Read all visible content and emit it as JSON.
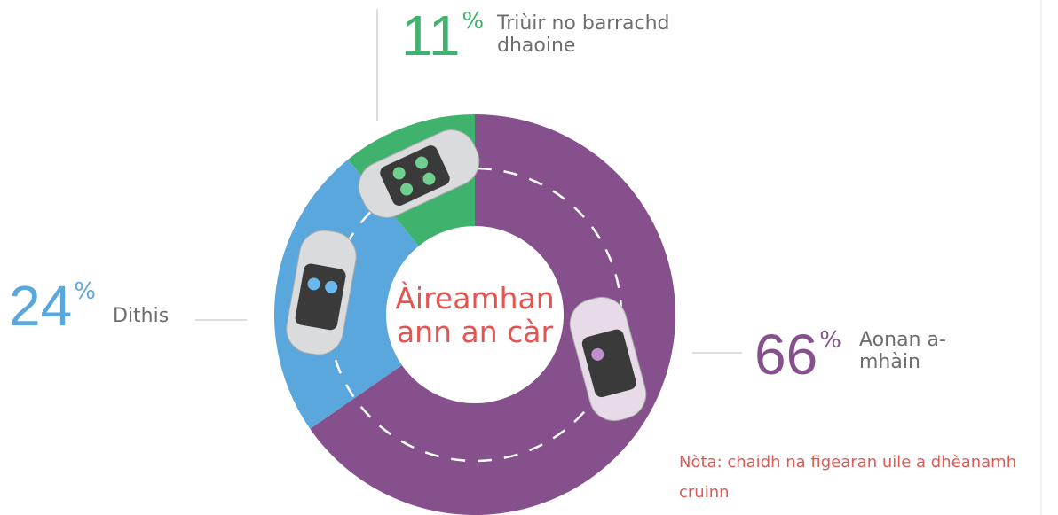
{
  "chart_data": {
    "type": "pie",
    "title": "Àireamhan ann an càr",
    "categories": [
      "Aonan a-mhàin",
      "Dithis",
      "Triùir no barrachd dhaoine"
    ],
    "values": [
      66,
      24,
      11
    ],
    "value_unit": "%",
    "colors": [
      "#86508c",
      "#5aa7dd",
      "#3fb36e"
    ],
    "note": "Nòta: chaidh na figearan uile a dhèanamh cruinn"
  }
}
